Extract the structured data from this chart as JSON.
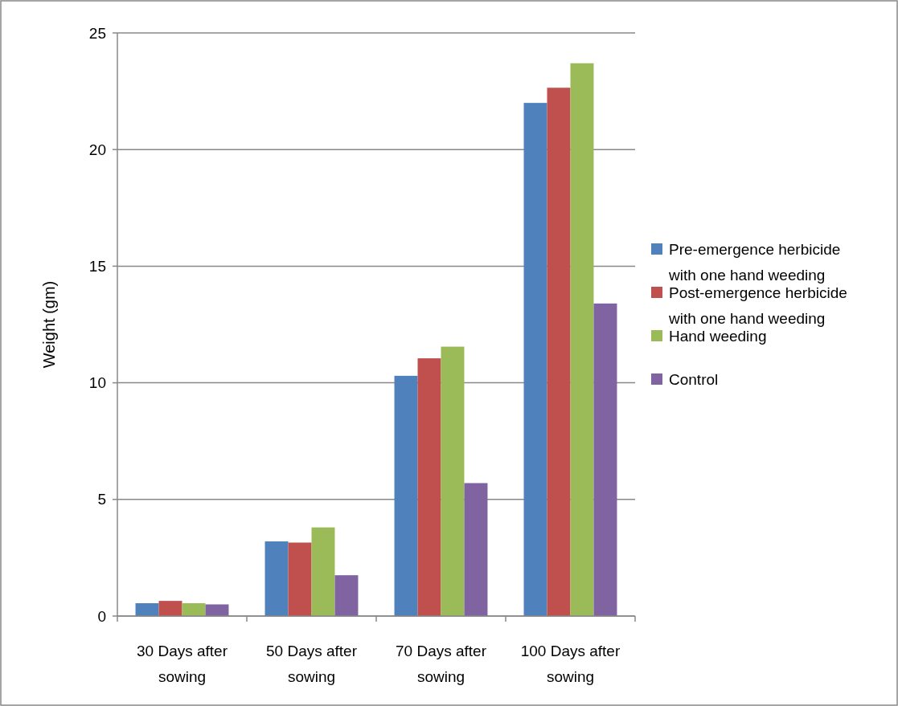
{
  "chart_data": {
    "type": "bar",
    "ylabel": "Weight (gm)",
    "categories": [
      "30 Days after sowing",
      "50 Days after sowing",
      "70 Days after sowing",
      "100 Days after sowing"
    ],
    "series": [
      {
        "name": "Pre-emergence herbicide with one hand weeding",
        "color": "#4f81bd",
        "values": [
          0.55,
          3.2,
          10.3,
          22.0
        ]
      },
      {
        "name": "Post-emergence herbicide with one hand weeding",
        "color": "#c0504d",
        "values": [
          0.65,
          3.15,
          11.05,
          22.65
        ]
      },
      {
        "name": "Hand weeding",
        "color": "#9bbb59",
        "values": [
          0.55,
          3.8,
          11.55,
          23.7
        ]
      },
      {
        "name": "Control",
        "color": "#8064a2",
        "values": [
          0.5,
          1.75,
          5.7,
          13.4
        ]
      }
    ],
    "ylim": [
      0,
      25
    ],
    "yticks": [
      0,
      5,
      10,
      15,
      20,
      25
    ],
    "grid": "y",
    "legend": "right"
  }
}
